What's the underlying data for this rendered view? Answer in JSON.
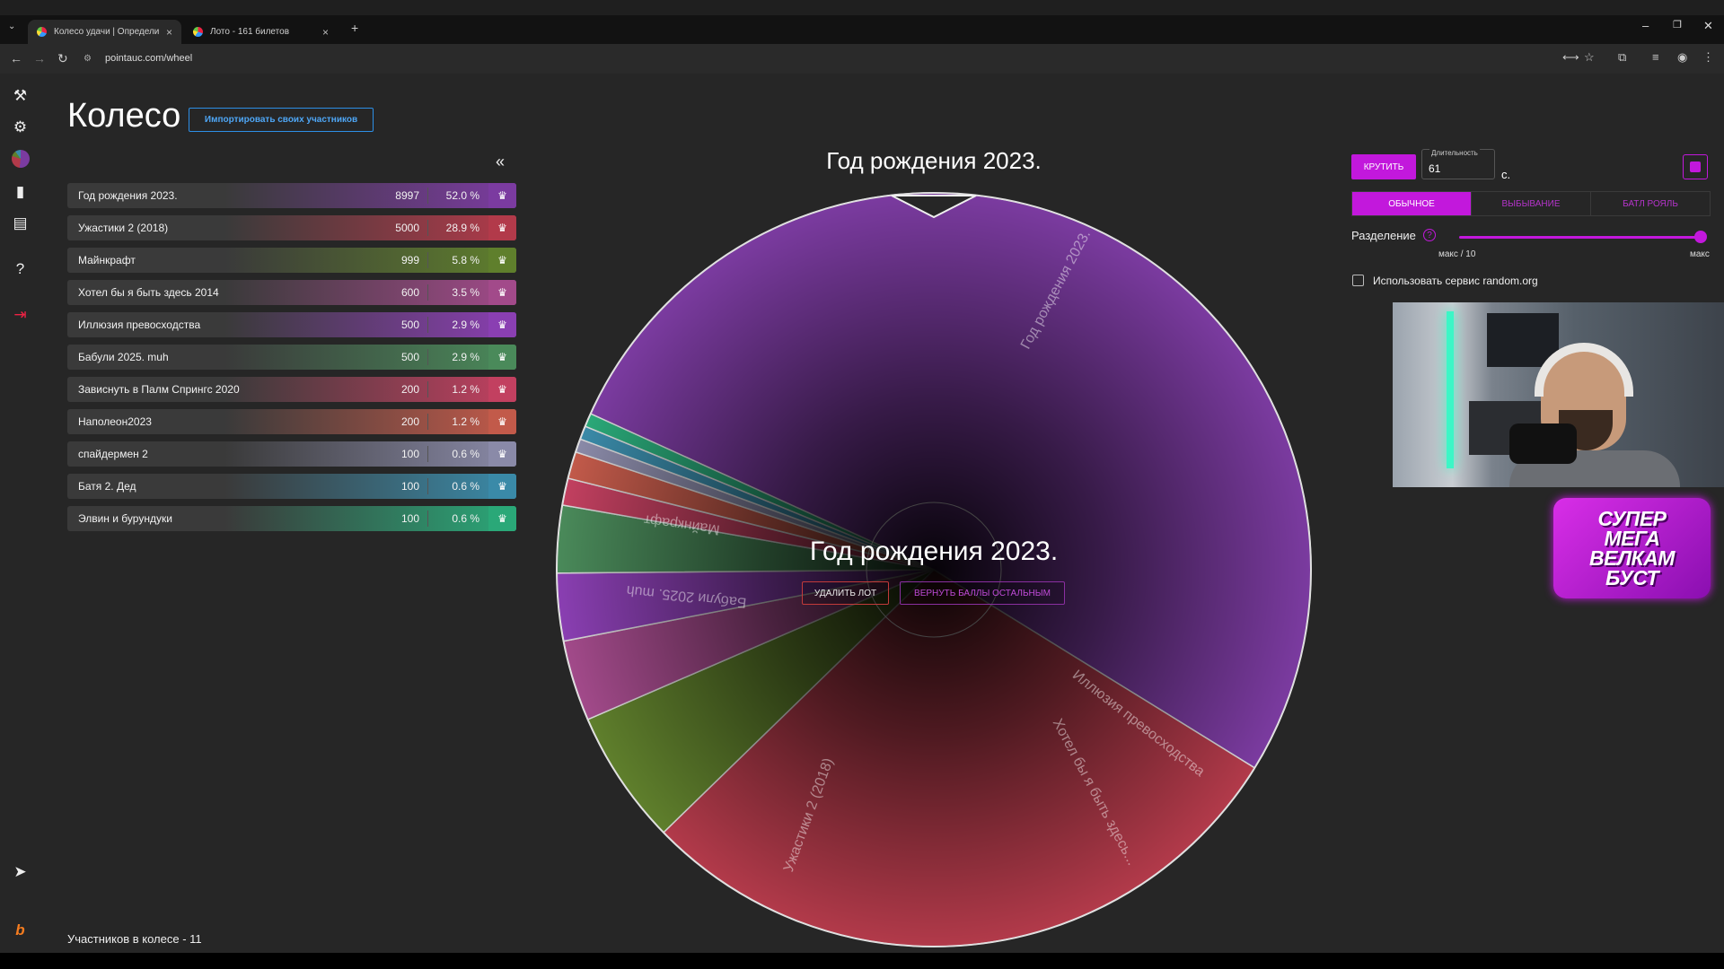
{
  "browser": {
    "tabs": [
      {
        "title": "Колесо удачи | Определите п",
        "active": true
      },
      {
        "title": "Лото - 161 билетов",
        "active": false
      }
    ],
    "url": "pointauc.com/wheel"
  },
  "header": {
    "title": "Колесо",
    "import_label": "Импортировать своих участников",
    "collapse_icon": "«"
  },
  "lots": [
    {
      "name": "Год рождения 2023.",
      "amount": "8997",
      "percent": "52.0 %",
      "value": 8997,
      "color": "#7b3ba0"
    },
    {
      "name": "Ужастики 2 (2018)",
      "amount": "5000",
      "percent": "28.9 %",
      "value": 5000,
      "color": "#b23a4a"
    },
    {
      "name": "Майнкрафт",
      "amount": "999",
      "percent": "5.8 %",
      "value": 999,
      "color": "#5f7f2c"
    },
    {
      "name": "Хотел бы я быть здесь 2014",
      "amount": "600",
      "percent": "3.5 %",
      "value": 600,
      "color": "#a24a8a"
    },
    {
      "name": "Иллюзия превосходства",
      "amount": "500",
      "percent": "2.9 %",
      "value": 500,
      "color": "#8a3fb2"
    },
    {
      "name": "Бабули 2025. muh",
      "amount": "500",
      "percent": "2.9 %",
      "value": 500,
      "color": "#4a8a5a"
    },
    {
      "name": "Зависнуть в Палм Спрингс 2020",
      "amount": "200",
      "percent": "1.2 %",
      "value": 200,
      "color": "#c24060"
    },
    {
      "name": "Наполеон2023",
      "amount": "200",
      "percent": "1.2 %",
      "value": 200,
      "color": "#c25a4a"
    },
    {
      "name": "спайдермен 2",
      "amount": "100",
      "percent": "0.6 %",
      "value": 100,
      "color": "#8a8aa8"
    },
    {
      "name": "Батя 2. Дед",
      "amount": "100",
      "percent": "0.6 %",
      "value": 100,
      "color": "#3a8aa8"
    },
    {
      "name": "Элвин и бурундуки",
      "amount": "100",
      "percent": "0.6 %",
      "value": 100,
      "color": "#2aa878"
    }
  ],
  "wheel": {
    "winner_top": "Год рождения 2023.",
    "winner_center": "Год рождения 2023.",
    "delete_label": "УДАЛИТЬ ЛОТ",
    "return_label": "ВЕРНУТЬ БАЛЛЫ ОСТАЛЬНЫМ",
    "slice_labels": [
      "Год рождения 2023.",
      "Ужастики 2 (2018)",
      "Майнкрафт",
      "Хотел бы я быть здесь...",
      "Иллюзия превосходства",
      "Бабули 2025. muh"
    ]
  },
  "controls": {
    "spin_label": "КРУТИТЬ",
    "duration_label": "Длительность",
    "duration_value": "61",
    "duration_unit": "с.",
    "modes": [
      "ОБЫЧНОЕ",
      "ВЫБЫВАНИЕ",
      "БАТЛ РОЯЛЬ"
    ],
    "active_mode": 0,
    "split_label": "Разделение",
    "split_help": "?",
    "split_min": "макс / 10",
    "split_max": "макс",
    "split_level": 1.0,
    "random_label": "Использовать сервис random.org",
    "random_checked": false
  },
  "overlay": {
    "boost_lines": [
      "СУПЕР",
      "МЕГА",
      "ВЕЛКАМ",
      "БУСТ"
    ]
  },
  "footer": {
    "count_text": "Участников в колесе - 11"
  }
}
